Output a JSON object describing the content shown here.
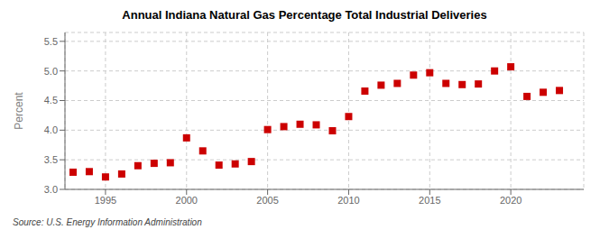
{
  "chart_data": {
    "type": "scatter",
    "title": "Annual Indiana Natural Gas Percentage Total Industrial Deliveries",
    "ylabel": "Percent",
    "annotations": [
      "Source: U.S. Energy Information Administration"
    ],
    "color": "#cc0000",
    "marker": "square",
    "grid": true,
    "xlim": [
      1992.5,
      2024.5
    ],
    "ylim": [
      3.0,
      5.65
    ],
    "xticks": [
      1995,
      2000,
      2005,
      2010,
      2015,
      2020
    ],
    "yticks": [
      {
        "value": 3.0,
        "label": "3.0"
      },
      3.5,
      {
        "value": 4.0,
        "label": "4.0"
      },
      4.5,
      {
        "value": 5.0,
        "label": "5.0"
      },
      5.5
    ],
    "x": [
      1993,
      1994,
      1995,
      1996,
      1997,
      1998,
      1999,
      2000,
      2001,
      2002,
      2003,
      2004,
      2005,
      2006,
      2007,
      2008,
      2009,
      2010,
      2011,
      2012,
      2013,
      2014,
      2015,
      2016,
      2017,
      2018,
      2019,
      2020,
      2021,
      2022,
      2023
    ],
    "values": [
      3.29,
      3.3,
      3.21,
      3.26,
      3.4,
      3.44,
      3.45,
      3.87,
      3.65,
      3.41,
      3.43,
      3.47,
      4.01,
      4.06,
      4.1,
      4.09,
      3.99,
      4.23,
      4.66,
      4.76,
      4.79,
      4.93,
      4.97,
      4.79,
      4.77,
      4.78,
      5.0,
      5.07,
      4.57,
      4.64,
      4.67
    ]
  }
}
